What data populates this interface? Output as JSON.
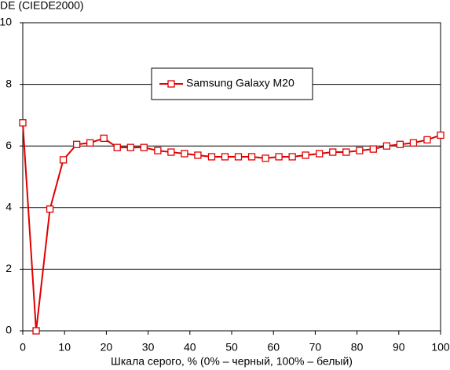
{
  "chart_data": {
    "type": "line",
    "y_label": "DE (CIEDE2000)",
    "x_label": "Шкала серого, % (0% – черный, 100% – белый)",
    "x": [
      0,
      3.2,
      6.5,
      9.7,
      12.9,
      16.1,
      19.4,
      22.6,
      25.8,
      29.0,
      32.3,
      35.5,
      38.7,
      41.9,
      45.2,
      48.4,
      51.6,
      54.8,
      58.1,
      61.3,
      64.5,
      67.7,
      71.0,
      74.2,
      77.4,
      80.6,
      83.9,
      87.1,
      90.3,
      93.5,
      96.8,
      100
    ],
    "series": [
      {
        "name": "Samsung Galaxy M20",
        "color": "#e00000",
        "values": [
          6.75,
          0,
          3.95,
          5.55,
          6.05,
          6.1,
          6.25,
          5.95,
          5.95,
          5.95,
          5.85,
          5.8,
          5.75,
          5.7,
          5.65,
          5.65,
          5.65,
          5.65,
          5.6,
          5.65,
          5.65,
          5.7,
          5.75,
          5.8,
          5.8,
          5.85,
          5.9,
          6.0,
          6.05,
          6.1,
          6.2,
          6.35
        ]
      }
    ],
    "xlim": [
      0,
      100
    ],
    "xticks": [
      0,
      10,
      20,
      30,
      40,
      50,
      60,
      70,
      80,
      90,
      100
    ],
    "ylim": [
      0,
      10
    ],
    "yticks": [
      0,
      2,
      4,
      6,
      8,
      10
    ],
    "grid": true,
    "legend": "top-center"
  }
}
